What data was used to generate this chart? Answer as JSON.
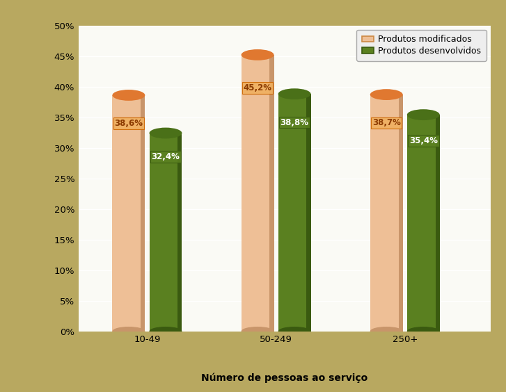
{
  "categories": [
    "10-49",
    "50-249",
    "250+"
  ],
  "series1_label": "Produtos modificados",
  "series2_label": "Produtos desenvolvidos",
  "series1_values": [
    38.6,
    45.2,
    38.7
  ],
  "series2_values": [
    32.4,
    38.8,
    35.4
  ],
  "series1_color": "#EEBF96",
  "series1_dark": "#C8956A",
  "series1_top_color": "#E07830",
  "series2_color": "#5A8020",
  "series2_dark": "#3A5A10",
  "series2_top_color": "#4A7018",
  "series1_label_color": "#8B3A00",
  "series2_label_color": "#FFFFFF",
  "xlabel": "Número de pessoas ao serviço",
  "ylim": [
    0,
    50
  ],
  "yticks": [
    0,
    5,
    10,
    15,
    20,
    25,
    30,
    35,
    40,
    45,
    50
  ],
  "background_outer": "#B8A860",
  "background_plot": "#FAFAF5",
  "background_wall_left": "#C8C8C0",
  "background_floor": "#D8D4C8",
  "label_fontsize": 8.5,
  "axis_fontsize": 9.5,
  "legend_fontsize": 9
}
